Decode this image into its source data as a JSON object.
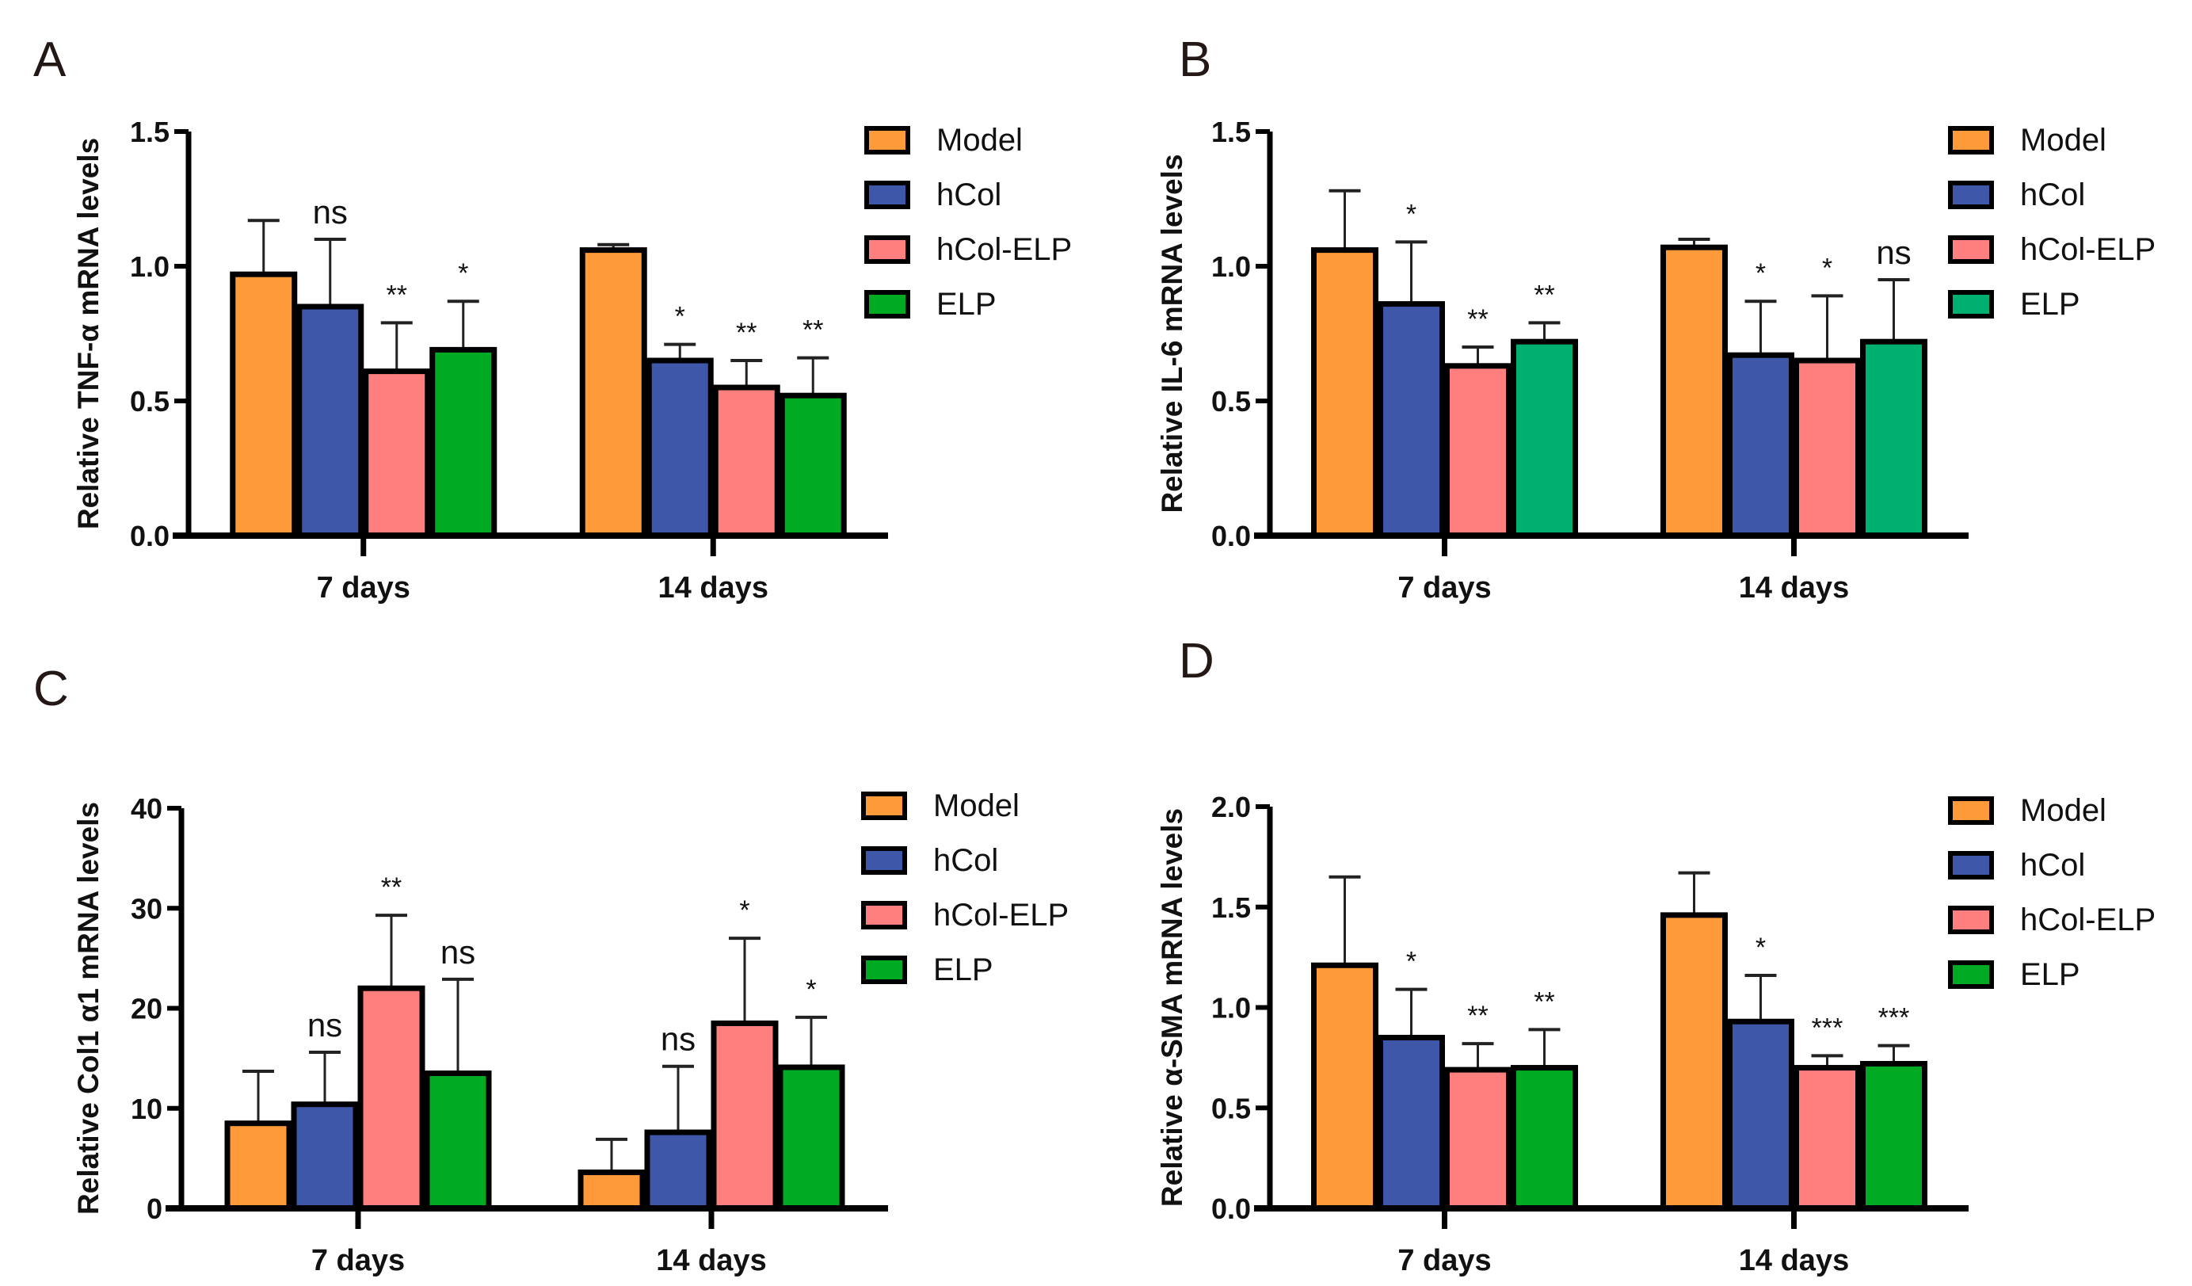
{
  "chart_data": [
    {
      "type": "bar",
      "panel_label": "A",
      "ylabel": "Relative TNF-α mRNA levels",
      "xlabel": "",
      "ylim": [
        0,
        1.5
      ],
      "yticks": [
        "0.0",
        "0.5",
        "1.0",
        "1.5"
      ],
      "ytick_values": [
        0,
        0.5,
        1.0,
        1.5
      ],
      "categories": [
        "7 days",
        "14 days"
      ],
      "series": [
        {
          "name": "Model",
          "color": "#FF9A3A",
          "values": [
            0.97,
            1.06
          ],
          "error_upper": [
            1.17,
            1.08
          ],
          "significance": [
            "",
            ""
          ]
        },
        {
          "name": "hCol",
          "color": "#3F57A8",
          "values": [
            0.85,
            0.65
          ],
          "error_upper": [
            1.1,
            0.71
          ],
          "significance": [
            "ns",
            "*"
          ]
        },
        {
          "name": "hCol-ELP",
          "color": "#FF7F7F",
          "values": [
            0.61,
            0.55
          ],
          "error_upper": [
            0.79,
            0.65
          ],
          "significance": [
            "**",
            "**"
          ]
        },
        {
          "name": "ELP",
          "color": "#00AA22",
          "values": [
            0.69,
            0.52
          ],
          "error_upper": [
            0.87,
            0.66
          ],
          "significance": [
            "*",
            "**"
          ]
        }
      ],
      "legend": "right"
    },
    {
      "type": "bar",
      "panel_label": "B",
      "ylabel": "Relative IL-6 mRNA levels",
      "xlabel": "",
      "ylim": [
        0,
        1.5
      ],
      "yticks": [
        "0.0",
        "0.5",
        "1.0",
        "1.5"
      ],
      "ytick_values": [
        0,
        0.5,
        1.0,
        1.5
      ],
      "categories": [
        "7 days",
        "14 days"
      ],
      "series": [
        {
          "name": "Model",
          "color": "#FF9A3A",
          "values": [
            1.06,
            1.07
          ],
          "error_upper": [
            1.28,
            1.1
          ],
          "significance": [
            "",
            ""
          ]
        },
        {
          "name": "hCol",
          "color": "#3F57A8",
          "values": [
            0.86,
            0.67
          ],
          "error_upper": [
            1.09,
            0.87
          ],
          "significance": [
            "*",
            "*"
          ]
        },
        {
          "name": "hCol-ELP",
          "color": "#FF7F7F",
          "values": [
            0.63,
            0.65
          ],
          "error_upper": [
            0.7,
            0.89
          ],
          "significance": [
            "**",
            "*"
          ]
        },
        {
          "name": "ELP",
          "color": "#00B070",
          "values": [
            0.72,
            0.72
          ],
          "error_upper": [
            0.79,
            0.95
          ],
          "significance": [
            "**",
            "ns"
          ]
        }
      ],
      "legend": "right"
    },
    {
      "type": "bar",
      "panel_label": "C",
      "ylabel": "Relative Col1 α1 mRNA levels",
      "xlabel": "",
      "ylim": [
        0,
        40
      ],
      "yticks": [
        "0",
        "10",
        "20",
        "30",
        "40"
      ],
      "ytick_values": [
        0,
        10,
        20,
        30,
        40
      ],
      "categories": [
        "7 days",
        "14 days"
      ],
      "series": [
        {
          "name": "Model",
          "color": "#FF9A3A",
          "values": [
            8.5,
            3.6
          ],
          "error_upper": [
            13.7,
            6.9
          ],
          "significance": [
            "",
            ""
          ]
        },
        {
          "name": "hCol",
          "color": "#3F57A8",
          "values": [
            10.4,
            7.6
          ],
          "error_upper": [
            15.6,
            14.2
          ],
          "significance": [
            "ns",
            "ns"
          ]
        },
        {
          "name": "hCol-ELP",
          "color": "#FF7F7F",
          "values": [
            22.0,
            18.5
          ],
          "error_upper": [
            29.3,
            27.0
          ],
          "significance": [
            "**",
            "*"
          ]
        },
        {
          "name": "ELP",
          "color": "#00AA22",
          "values": [
            13.5,
            14.1
          ],
          "error_upper": [
            22.9,
            19.1
          ],
          "significance": [
            "ns",
            "*"
          ]
        }
      ],
      "legend": "right"
    },
    {
      "type": "bar",
      "panel_label": "D",
      "ylabel": "Relative α-SMA mRNA levels",
      "xlabel": "",
      "ylim": [
        0,
        2.0
      ],
      "yticks": [
        "0.0",
        "0.5",
        "1.0",
        "1.5",
        "2.0"
      ],
      "ytick_values": [
        0,
        0.5,
        1.0,
        1.5,
        2.0
      ],
      "categories": [
        "7 days",
        "14 days"
      ],
      "series": [
        {
          "name": "Model",
          "color": "#FF9A3A",
          "values": [
            1.21,
            1.46
          ],
          "error_upper": [
            1.65,
            1.67
          ],
          "significance": [
            "",
            ""
          ]
        },
        {
          "name": "hCol",
          "color": "#3F57A8",
          "values": [
            0.85,
            0.93
          ],
          "error_upper": [
            1.09,
            1.16
          ],
          "significance": [
            "*",
            "*"
          ]
        },
        {
          "name": "hCol-ELP",
          "color": "#FF7F7F",
          "values": [
            0.69,
            0.7
          ],
          "error_upper": [
            0.82,
            0.76
          ],
          "significance": [
            "**",
            "***"
          ]
        },
        {
          "name": "ELP",
          "color": "#00AA22",
          "values": [
            0.7,
            0.72
          ],
          "error_upper": [
            0.89,
            0.81
          ],
          "significance": [
            "**",
            "***"
          ]
        }
      ],
      "legend": "right"
    }
  ]
}
